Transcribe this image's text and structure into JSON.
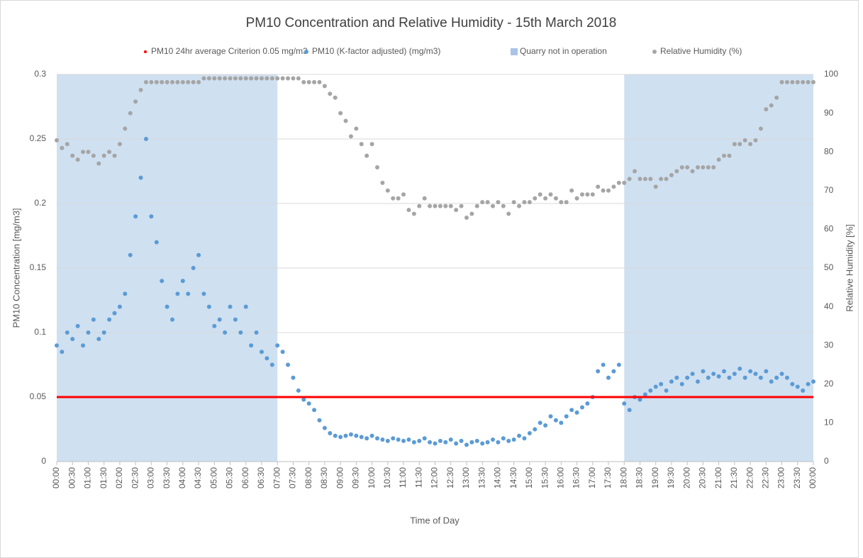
{
  "chart_data": {
    "type": "scatter",
    "title": "PM10 Concentration and Relative Humidity - 15th March 2018",
    "x_label": "Time of Day",
    "y_label": "PM10 Concentration [mg/m3]",
    "y2_label": "Relative Humidity [%]",
    "xlim": [
      0,
      1440
    ],
    "ylim": [
      0,
      0.3
    ],
    "y2lim": [
      0,
      100
    ],
    "yticks": [
      0,
      0.05,
      0.1,
      0.15,
      0.2,
      0.25,
      0.3
    ],
    "y2ticks": [
      0,
      10,
      20,
      30,
      40,
      50,
      60,
      70,
      80,
      90,
      100
    ],
    "grid": true,
    "legend": "top",
    "xticks": [
      {
        "value": 0,
        "label": "00:00"
      },
      {
        "value": 30,
        "label": "00:30"
      },
      {
        "value": 60,
        "label": "01:00"
      },
      {
        "value": 90,
        "label": "01:30"
      },
      {
        "value": 120,
        "label": "02:00"
      },
      {
        "value": 150,
        "label": "02:30"
      },
      {
        "value": 180,
        "label": "03:00"
      },
      {
        "value": 210,
        "label": "03:30"
      },
      {
        "value": 240,
        "label": "04:00"
      },
      {
        "value": 270,
        "label": "04:30"
      },
      {
        "value": 300,
        "label": "05:00"
      },
      {
        "value": 330,
        "label": "05:30"
      },
      {
        "value": 360,
        "label": "06:00"
      },
      {
        "value": 390,
        "label": "06:30"
      },
      {
        "value": 420,
        "label": "07:00"
      },
      {
        "value": 450,
        "label": "07:30"
      },
      {
        "value": 480,
        "label": "08:00"
      },
      {
        "value": 510,
        "label": "08:30"
      },
      {
        "value": 540,
        "label": "09:00"
      },
      {
        "value": 570,
        "label": "09:30"
      },
      {
        "value": 600,
        "label": "10:00"
      },
      {
        "value": 630,
        "label": "10:30"
      },
      {
        "value": 660,
        "label": "11:00"
      },
      {
        "value": 690,
        "label": "11:30"
      },
      {
        "value": 720,
        "label": "12:00"
      },
      {
        "value": 750,
        "label": "12:30"
      },
      {
        "value": 780,
        "label": "13:00"
      },
      {
        "value": 810,
        "label": "13:30"
      },
      {
        "value": 840,
        "label": "14:00"
      },
      {
        "value": 870,
        "label": "14:30"
      },
      {
        "value": 900,
        "label": "15:00"
      },
      {
        "value": 930,
        "label": "15:30"
      },
      {
        "value": 960,
        "label": "16:00"
      },
      {
        "value": 990,
        "label": "16:30"
      },
      {
        "value": 1020,
        "label": "17:00"
      },
      {
        "value": 1050,
        "label": "17:30"
      },
      {
        "value": 1080,
        "label": "18:00"
      },
      {
        "value": 1110,
        "label": "18:30"
      },
      {
        "value": 1140,
        "label": "19:00"
      },
      {
        "value": 1170,
        "label": "19:30"
      },
      {
        "value": 1200,
        "label": "20:00"
      },
      {
        "value": 1230,
        "label": "20:30"
      },
      {
        "value": 1260,
        "label": "21:00"
      },
      {
        "value": 1290,
        "label": "21:30"
      },
      {
        "value": 1320,
        "label": "22:00"
      },
      {
        "value": 1350,
        "label": "22:30"
      },
      {
        "value": 1380,
        "label": "23:00"
      },
      {
        "value": 1410,
        "label": "23:30"
      },
      {
        "value": 1440,
        "label": "00:00"
      }
    ],
    "criterion": {
      "name": "PM10 24hr average Criterion 0.05 mg/m3",
      "color": "#ff0000",
      "value": 0.05
    },
    "shaded": {
      "name": "Quarry not in operation",
      "color": "#cfe0f1",
      "ranges": [
        [
          0,
          420
        ],
        [
          1080,
          1440
        ]
      ]
    },
    "x": [
      0,
      10,
      20,
      30,
      40,
      50,
      60,
      70,
      80,
      90,
      100,
      110,
      120,
      130,
      140,
      150,
      160,
      170,
      180,
      190,
      200,
      210,
      220,
      230,
      240,
      250,
      260,
      270,
      280,
      290,
      300,
      310,
      320,
      330,
      340,
      350,
      360,
      370,
      380,
      390,
      400,
      410,
      420,
      430,
      440,
      450,
      460,
      470,
      480,
      490,
      500,
      510,
      520,
      530,
      540,
      550,
      560,
      570,
      580,
      590,
      600,
      610,
      620,
      630,
      640,
      650,
      660,
      670,
      680,
      690,
      700,
      710,
      720,
      730,
      740,
      750,
      760,
      770,
      780,
      790,
      800,
      810,
      820,
      830,
      840,
      850,
      860,
      870,
      880,
      890,
      900,
      910,
      920,
      930,
      940,
      950,
      960,
      970,
      980,
      990,
      1000,
      1010,
      1020,
      1030,
      1040,
      1050,
      1060,
      1070,
      1080,
      1090,
      1100,
      1110,
      1120,
      1130,
      1140,
      1150,
      1160,
      1170,
      1180,
      1190,
      1200,
      1210,
      1220,
      1230,
      1240,
      1250,
      1260,
      1270,
      1280,
      1290,
      1300,
      1310,
      1320,
      1330,
      1340,
      1350,
      1360,
      1370,
      1380,
      1390,
      1400,
      1410,
      1420,
      1430,
      1440
    ],
    "series": [
      {
        "name": "PM10 (K-factor adjusted) (mg/m3)",
        "color": "#5b9bd5",
        "axis": "y",
        "values": [
          0.09,
          0.085,
          0.1,
          0.095,
          0.105,
          0.09,
          0.1,
          0.11,
          0.095,
          0.1,
          0.11,
          0.115,
          0.12,
          0.13,
          0.16,
          0.19,
          0.22,
          0.25,
          0.19,
          0.17,
          0.14,
          0.12,
          0.11,
          0.13,
          0.14,
          0.13,
          0.15,
          0.16,
          0.13,
          0.12,
          0.105,
          0.11,
          0.1,
          0.12,
          0.11,
          0.1,
          0.12,
          0.09,
          0.1,
          0.085,
          0.08,
          0.075,
          0.09,
          0.085,
          0.075,
          0.065,
          0.055,
          0.048,
          0.045,
          0.04,
          0.032,
          0.026,
          0.022,
          0.02,
          0.019,
          0.02,
          0.021,
          0.02,
          0.019,
          0.018,
          0.02,
          0.018,
          0.017,
          0.016,
          0.018,
          0.017,
          0.016,
          0.017,
          0.015,
          0.016,
          0.018,
          0.015,
          0.014,
          0.016,
          0.015,
          0.017,
          0.014,
          0.016,
          0.013,
          0.015,
          0.016,
          0.014,
          0.015,
          0.017,
          0.015,
          0.018,
          0.016,
          0.017,
          0.02,
          0.018,
          0.022,
          0.025,
          0.03,
          0.028,
          0.035,
          0.032,
          0.03,
          0.035,
          0.04,
          0.038,
          0.042,
          0.045,
          0.05,
          0.07,
          0.075,
          0.065,
          0.07,
          0.075,
          0.045,
          0.04,
          0.05,
          0.048,
          0.052,
          0.055,
          0.058,
          0.06,
          0.055,
          0.062,
          0.065,
          0.06,
          0.065,
          0.068,
          0.062,
          0.07,
          0.065,
          0.068,
          0.066,
          0.07,
          0.065,
          0.068,
          0.072,
          0.065,
          0.07,
          0.068,
          0.065,
          0.07,
          0.062,
          0.065,
          0.068,
          0.065,
          0.06,
          0.058,
          0.055,
          0.06,
          0.062
        ]
      },
      {
        "name": "Relative Humidity (%)",
        "color": "#a5a5a5",
        "axis": "y2",
        "values": [
          83,
          81,
          82,
          79,
          78,
          80,
          80,
          79,
          77,
          79,
          80,
          79,
          82,
          86,
          90,
          93,
          96,
          98,
          98,
          98,
          98,
          98,
          98,
          98,
          98,
          98,
          98,
          98,
          99,
          99,
          99,
          99,
          99,
          99,
          99,
          99,
          99,
          99,
          99,
          99,
          99,
          99,
          99,
          99,
          99,
          99,
          99,
          98,
          98,
          98,
          98,
          97,
          95,
          94,
          90,
          88,
          84,
          86,
          82,
          79,
          82,
          76,
          72,
          70,
          68,
          68,
          69,
          65,
          64,
          66,
          68,
          66,
          66,
          66,
          66,
          66,
          65,
          66,
          63,
          64,
          66,
          67,
          67,
          66,
          67,
          66,
          64,
          67,
          66,
          67,
          67,
          68,
          69,
          68,
          69,
          68,
          67,
          67,
          70,
          68,
          69,
          69,
          69,
          71,
          70,
          70,
          71,
          72,
          72,
          73,
          75,
          73,
          73,
          73,
          71,
          73,
          73,
          74,
          75,
          76,
          76,
          75,
          76,
          76,
          76,
          76,
          78,
          79,
          79,
          82,
          82,
          83,
          82,
          83,
          86,
          91,
          92,
          94,
          98,
          98,
          98,
          98,
          98,
          98,
          98
        ]
      }
    ]
  }
}
